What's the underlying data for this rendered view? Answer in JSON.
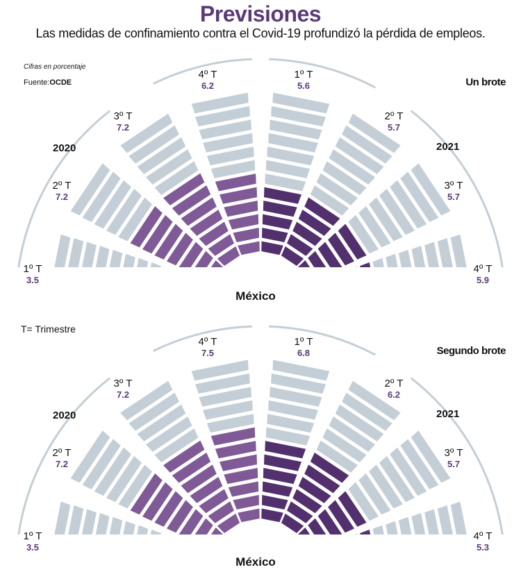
{
  "title": "Previsiones",
  "subtitle": "Las medidas de confinamiento contra el Covid-19 profundizó la pérdida de empleos.",
  "note": "Cifras en porcentaje",
  "source_label": "Fuente:",
  "source": "OCDE",
  "legend": "T= Trimestre",
  "colors": {
    "title": "#5b3a7a",
    "grey": "#c3ced6",
    "purple_2020": "#7f5a96",
    "purple_2021": "#52306e",
    "arc": "#c3ced6"
  },
  "chart_data": [
    {
      "type": "radial-bar",
      "scenario": "Un brote",
      "center_label": "México",
      "segments_per_bar": 12,
      "groups": [
        {
          "year": "2020",
          "quarters": [
            "1º T",
            "2º T",
            "3º T",
            "4º T"
          ],
          "values": [
            3.5,
            7.2,
            7.2,
            6.2
          ]
        },
        {
          "year": "2021",
          "quarters": [
            "1º T",
            "2º T",
            "3º T",
            "4º T"
          ],
          "values": [
            5.6,
            5.7,
            5.7,
            5.9
          ]
        }
      ]
    },
    {
      "type": "radial-bar",
      "scenario": "Segundo brote",
      "center_label": "México",
      "segments_per_bar": 12,
      "groups": [
        {
          "year": "2020",
          "quarters": [
            "1º T",
            "2º T",
            "3º T",
            "4º T"
          ],
          "values": [
            3.5,
            7.2,
            7.2,
            7.5
          ]
        },
        {
          "year": "2021",
          "quarters": [
            "1º T",
            "2º T",
            "3º T",
            "4º T"
          ],
          "values": [
            6.8,
            6.2,
            5.7,
            5.3
          ]
        }
      ]
    }
  ]
}
